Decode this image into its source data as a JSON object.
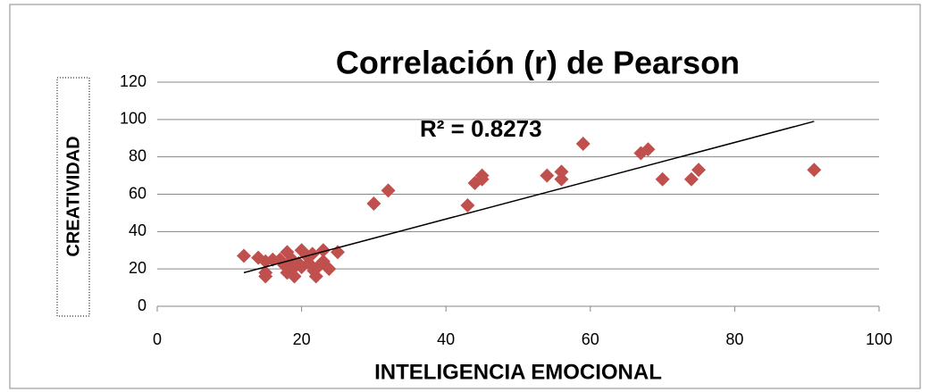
{
  "chart_data": {
    "type": "scatter",
    "title": "Correlación (r) de Pearson",
    "x_label": "INTELIGENCIA EMOCIONAL",
    "y_label": "CREATIVIDAD",
    "annotation": "R² = 0.8273",
    "color": "#c0504d",
    "x": [
      12,
      14,
      15,
      15,
      15,
      16,
      17,
      17.6,
      18,
      18,
      18.7,
      19,
      19,
      19.6,
      20,
      20,
      20.7,
      21,
      21.5,
      21.7,
      22,
      22.5,
      23,
      23,
      23.8,
      25,
      30,
      32,
      43,
      44,
      45,
      45,
      54,
      56,
      56,
      59,
      67,
      68,
      70,
      74,
      75,
      91
    ],
    "values": [
      27,
      26,
      24,
      18,
      16,
      25,
      25,
      22,
      29,
      18,
      25,
      16,
      21,
      23,
      30,
      21,
      27,
      23,
      28,
      19,
      16,
      22,
      30,
      24,
      20,
      29,
      55,
      62,
      54,
      66,
      68,
      70,
      70,
      72,
      68,
      87,
      82,
      84,
      68,
      68,
      73,
      73
    ],
    "trendline": {
      "color": "#000000",
      "x": [
        12,
        91
      ],
      "y": [
        18,
        99
      ]
    },
    "xlim": [
      0,
      100
    ],
    "xticks": [
      0,
      20,
      40,
      60,
      80,
      100
    ],
    "ylim": [
      0,
      120
    ],
    "yticks": [
      0,
      20,
      40,
      60,
      80,
      100,
      120
    ],
    "grid": true
  }
}
